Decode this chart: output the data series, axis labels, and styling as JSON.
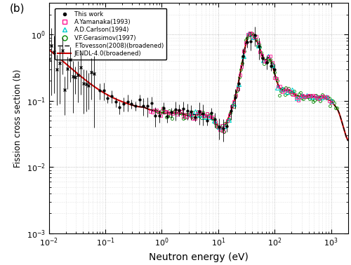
{
  "title": "",
  "xlabel": "Neutron energy (eV)",
  "ylabel": "Fission cross section (b)",
  "xlim": [
    0.01,
    2000
  ],
  "ylim": [
    0.001,
    3
  ],
  "panel_label": "(b)",
  "legend": {
    "this_work": "This work",
    "yamanaka": "A.Yamanaka(1993)",
    "carlson": "A.D.Carlson(1994)",
    "gerasimov": "V.F.Gerasimov(1997)",
    "tovesson": "F.Tovesson(2008)(broadened)",
    "jendl": "JENDL-4.0(broadened)"
  },
  "colors": {
    "this_work": "#000000",
    "yamanaka": "#ff1493",
    "carlson": "#00cccc",
    "gerasimov": "#008800",
    "tovesson": "#000000",
    "jendl": "#cc0000"
  },
  "background": "#ffffff"
}
